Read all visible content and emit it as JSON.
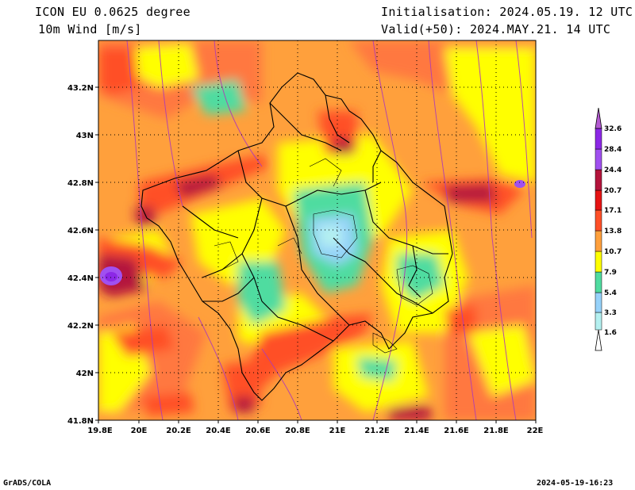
{
  "header": {
    "model": "ICON EU 0.0625 degree",
    "variable": "10m Wind [m/s]",
    "init": "Initialisation: 2024.05.19. 12 UTC",
    "valid": "Valid(+50): 2024.MAY.21. 14 UTC"
  },
  "axes": {
    "x_ticks": [
      "19.8E",
      "20E",
      "20.2E",
      "20.4E",
      "20.6E",
      "20.8E",
      "21E",
      "21.2E",
      "21.4E",
      "21.6E",
      "21.8E",
      "22E"
    ],
    "y_ticks": [
      "41.8N",
      "42N",
      "42.2N",
      "42.4N",
      "42.6N",
      "42.8N",
      "43N",
      "43.2N"
    ],
    "x_range": [
      19.8,
      22.0
    ],
    "y_range": [
      41.8,
      43.39
    ]
  },
  "legend": {
    "units": "m/s",
    "levels": [
      "1.6",
      "3.3",
      "5.4",
      "7.9",
      "10.7",
      "13.8",
      "17.1",
      "20.7",
      "24.4",
      "28.4",
      "32.6"
    ],
    "colors": [
      "#ffffff",
      "#b4f0f0",
      "#96d2fa",
      "#50dca0",
      "#ffff00",
      "#ffa03c",
      "#ff5028",
      "#e61414",
      "#b4143c",
      "#a050f0",
      "#8c28e6",
      "#b45ad2"
    ]
  },
  "footer": {
    "credit": "GrADS/COLA",
    "timestamp": "2024-05-19-16:23"
  }
}
